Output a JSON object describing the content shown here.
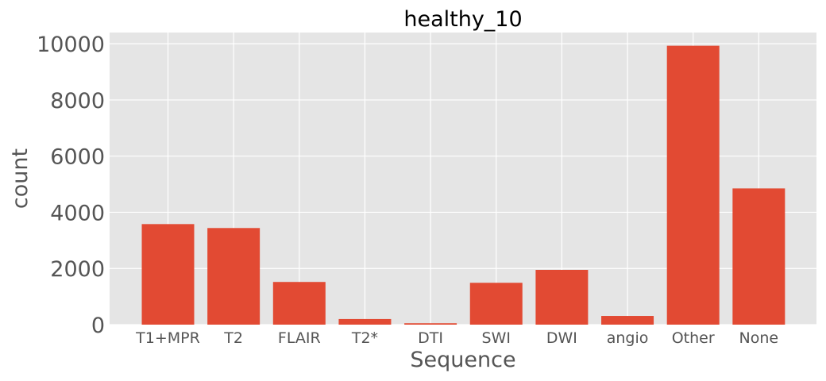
{
  "chart_data": {
    "type": "bar",
    "title": "healthy_10",
    "xlabel": "Sequence",
    "ylabel": "count",
    "categories": [
      "T1+MPR",
      "T2",
      "FLAIR",
      "T2*",
      "DTI",
      "SWI",
      "DWI",
      "angio",
      "Other",
      "None"
    ],
    "values": [
      3580,
      3440,
      1520,
      200,
      50,
      1490,
      1950,
      310,
      9930,
      4850
    ],
    "ylim": [
      0,
      10400
    ],
    "yticks": [
      0,
      2000,
      4000,
      6000,
      8000,
      10000
    ],
    "grid": true,
    "colors": {
      "bar": "#E24A33",
      "plot_background": "#E5E5E5",
      "grid": "#FFFFFF"
    }
  }
}
